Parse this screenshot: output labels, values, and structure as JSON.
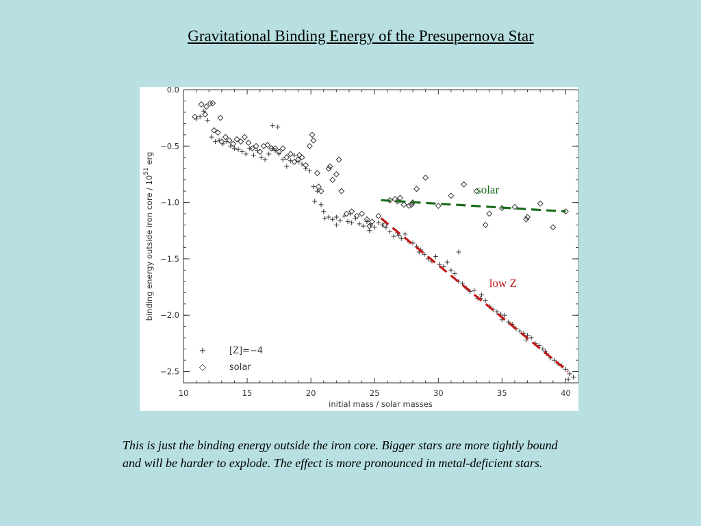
{
  "slide": {
    "title": "Gravitational Binding Energy of the Presupernova Star",
    "caption": "This is just the binding energy outside the iron core. Bigger stars are more tightly bound and will be harder to explode. The effect is more pronounced in metal-deficient stars."
  },
  "colors": {
    "background": "#b8e0e2",
    "solar_fit": "#1a6b1a",
    "lowz_fit": "#c21818",
    "markers": "#333333"
  },
  "chart_data": {
    "type": "scatter",
    "xlabel": "initial mass / solar masses",
    "ylabel": "binding energy outside iron core / 10^51 erg",
    "ylabel_parts": {
      "main": "binding energy outside iron core / 10",
      "sup": "51",
      "unit": " erg"
    },
    "xlim": [
      10,
      41
    ],
    "ylim": [
      -2.6,
      0.0
    ],
    "xticks": [
      10,
      15,
      20,
      25,
      30,
      35,
      40
    ],
    "yticks": [
      0.0,
      -0.5,
      -1.0,
      -1.5,
      -2.0,
      -2.5
    ],
    "ytick_labels": [
      "0.0",
      "−0.5",
      "−1.0",
      "−1.5",
      "−2.0",
      "−2.5"
    ],
    "legend": {
      "placement": "bottom-left",
      "entries": [
        "[Z]=−4",
        "solar"
      ]
    },
    "series": [
      {
        "name": "[Z]=−4",
        "marker": "plus",
        "x": [
          11.0,
          11.3,
          11.6,
          11.9,
          12.2,
          12.5,
          12.8,
          13.1,
          13.4,
          13.7,
          14.0,
          14.3,
          14.6,
          14.9,
          15.2,
          15.5,
          15.8,
          16.1,
          16.4,
          16.7,
          17.0,
          17.2,
          17.5,
          17.8,
          18.1,
          18.4,
          18.7,
          19.0,
          19.3,
          19.6,
          19.9,
          20.2,
          20.5,
          20.8,
          21.1,
          21.4,
          21.7,
          22.0,
          22.3,
          22.6,
          22.9,
          23.2,
          23.5,
          23.8,
          24.1,
          24.4,
          24.7,
          25.0,
          25.3,
          25.6,
          25.9,
          26.2,
          26.5,
          26.8,
          27.1,
          27.4,
          27.7,
          28.0,
          28.3,
          28.6,
          28.9,
          29.2,
          29.5,
          29.8,
          30.1,
          30.4,
          30.7,
          31.0,
          31.3,
          31.6,
          31.9,
          32.2,
          32.5,
          32.8,
          33.1,
          33.4,
          33.7,
          34.0,
          34.3,
          34.6,
          34.9,
          35.2,
          35.5,
          35.8,
          36.1,
          36.4,
          36.7,
          37.0,
          37.3,
          37.6,
          37.9,
          38.2,
          38.5,
          38.8,
          39.1,
          39.4,
          39.7,
          40.0,
          40.3,
          40.6,
          17.0,
          17.4,
          20.3,
          21.0,
          22.0,
          23.1,
          24.6,
          26.9,
          28.5,
          31.6,
          33.3,
          35.0,
          36.9,
          38.4,
          40.2
        ],
        "y": [
          -0.26,
          -0.24,
          -0.19,
          -0.27,
          -0.42,
          -0.46,
          -0.45,
          -0.48,
          -0.46,
          -0.5,
          -0.52,
          -0.53,
          -0.55,
          -0.57,
          -0.52,
          -0.58,
          -0.54,
          -0.6,
          -0.62,
          -0.57,
          -0.52,
          -0.54,
          -0.57,
          -0.62,
          -0.68,
          -0.63,
          -0.58,
          -0.64,
          -0.66,
          -0.7,
          -0.72,
          -0.86,
          -0.9,
          -1.02,
          -1.14,
          -1.13,
          -1.15,
          -1.13,
          -1.16,
          -1.12,
          -1.17,
          -1.18,
          -1.14,
          -1.19,
          -1.21,
          -1.17,
          -1.2,
          -1.22,
          -1.18,
          -1.2,
          -1.22,
          -1.26,
          -1.3,
          -1.27,
          -1.32,
          -1.28,
          -1.35,
          -1.36,
          -1.39,
          -1.42,
          -1.46,
          -1.5,
          -1.52,
          -1.48,
          -1.55,
          -1.57,
          -1.53,
          -1.6,
          -1.63,
          -1.7,
          -1.72,
          -1.76,
          -1.79,
          -1.78,
          -1.85,
          -1.82,
          -1.87,
          -1.92,
          -1.95,
          -1.97,
          -1.99,
          -2.0,
          -2.06,
          -2.08,
          -2.12,
          -2.14,
          -2.16,
          -2.18,
          -2.2,
          -2.25,
          -2.27,
          -2.3,
          -2.34,
          -2.38,
          -2.4,
          -2.43,
          -2.45,
          -2.48,
          -2.52,
          -2.55,
          -0.32,
          -0.33,
          -0.99,
          -1.08,
          -1.2,
          -1.1,
          -1.25,
          -1.29,
          -1.44,
          -1.44,
          -1.85,
          -2.04,
          -2.22,
          -2.32,
          -2.57
        ]
      },
      {
        "name": "solar",
        "marker": "diamond",
        "x": [
          10.9,
          11.4,
          11.8,
          12.1,
          12.4,
          12.7,
          13.0,
          13.3,
          13.6,
          13.9,
          14.2,
          14.5,
          14.8,
          15.1,
          15.4,
          15.7,
          16.0,
          16.3,
          16.6,
          16.9,
          17.2,
          17.5,
          17.8,
          18.1,
          18.4,
          18.7,
          19.0,
          19.3,
          19.6,
          19.9,
          20.2,
          20.5,
          20.8,
          21.4,
          21.7,
          22.0,
          22.4,
          22.8,
          23.2,
          23.6,
          24.0,
          24.4,
          24.8,
          25.3,
          25.8,
          26.2,
          26.6,
          27.0,
          27.3,
          27.7,
          28.0,
          28.3,
          29.0,
          30.0,
          31.0,
          32.0,
          33.0,
          34.0,
          35.0,
          36.0,
          37.0,
          38.0,
          39.0,
          40.0,
          20.1,
          21.5,
          22.2,
          11.7,
          12.3,
          12.9,
          19.1,
          20.6,
          24.6,
          26.8,
          27.9,
          33.7,
          36.9
        ],
        "y": [
          -0.24,
          -0.13,
          -0.15,
          -0.12,
          -0.36,
          -0.38,
          -0.46,
          -0.42,
          -0.45,
          -0.48,
          -0.44,
          -0.46,
          -0.42,
          -0.47,
          -0.52,
          -0.5,
          -0.55,
          -0.5,
          -0.49,
          -0.52,
          -0.52,
          -0.55,
          -0.52,
          -0.6,
          -0.57,
          -0.64,
          -0.62,
          -0.6,
          -0.67,
          -0.5,
          -0.45,
          -0.74,
          -0.9,
          -0.7,
          -0.8,
          -0.75,
          -0.9,
          -1.1,
          -1.08,
          -1.12,
          -1.1,
          -1.15,
          -1.17,
          -1.12,
          -1.2,
          -0.98,
          -0.97,
          -0.96,
          -1.02,
          -1.03,
          -1.0,
          -0.88,
          -0.78,
          -1.03,
          -0.94,
          -0.84,
          -0.9,
          -1.1,
          -1.05,
          -1.04,
          -1.13,
          -1.01,
          -1.22,
          -1.08,
          -0.4,
          -0.68,
          -0.62,
          -0.22,
          -0.12,
          -0.25,
          -0.58,
          -0.86,
          -1.21,
          -0.99,
          -1.02,
          -1.2,
          -1.15
        ]
      }
    ],
    "fits": [
      {
        "label": "solar",
        "from": [
          25.5,
          -0.98
        ],
        "to": [
          40.0,
          -1.08
        ],
        "color": "#1a6b1a"
      },
      {
        "label": "low Z",
        "from": [
          25.5,
          -1.14
        ],
        "to": [
          40.2,
          -2.5
        ],
        "color": "#c21818"
      }
    ],
    "annotations": [
      {
        "text": "solar",
        "x": 33.0,
        "y": -0.92,
        "color": "#1a6b1a"
      },
      {
        "text": "low Z",
        "x": 34.0,
        "y": -1.75,
        "color": "#c21818"
      }
    ]
  }
}
